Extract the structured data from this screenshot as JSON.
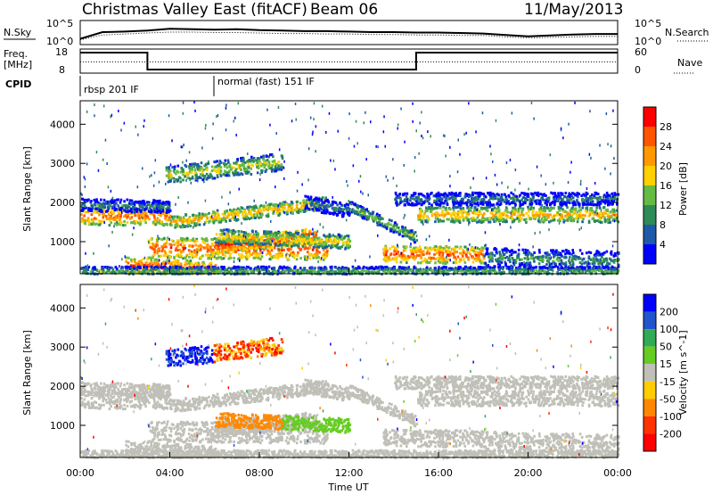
{
  "header": {
    "station": "Christmas Valley East (fitACF)",
    "beam": "Beam 06",
    "date": "11/May/2013"
  },
  "panel_labels": {
    "nsky": "N.Sky",
    "nsearch": "N.Search",
    "freq_line1": "Freq.",
    "freq_line2": "[MHz]",
    "nave": "Nave",
    "cpid": "CPID",
    "cpid_mode1": "rbsp 201 IF",
    "cpid_mode2": "normal (fast) 151 IF"
  },
  "colors": {
    "power_scale": [
      "#0000ff",
      "#1e5aa8",
      "#2e8b57",
      "#66bb44",
      "#ffd000",
      "#ff9900",
      "#ff5500",
      "#ff0000"
    ],
    "velocity_scale": [
      "#0000ff",
      "#2255cc",
      "#33aa55",
      "#66cc22",
      "#c0c0b8",
      "#ffcc00",
      "#ff8800",
      "#ff3300",
      "#ff0000"
    ],
    "ground_scatter": "#c0c0b8"
  },
  "chart_data": [
    {
      "type": "line",
      "name": "noise-panel",
      "ylabel_left": "N.Sky",
      "ylabel_right": "N.Search",
      "yticks_left": [
        "10^5",
        "10^0"
      ],
      "yticks_right": [
        "10^5",
        "10^0"
      ],
      "x": [
        0,
        1,
        2,
        3,
        4,
        5,
        6,
        7,
        8,
        9,
        10,
        11,
        12,
        13,
        14,
        15,
        16,
        17,
        18,
        19,
        20,
        21,
        22,
        23,
        24
      ],
      "series": [
        {
          "values": [
            1.2,
            2.6,
            2.7,
            2.9,
            3.3,
            3.2,
            3.1,
            3.2,
            3.0,
            2.9,
            2.8,
            2.8,
            2.7,
            2.6,
            2.6,
            2.5,
            2.5,
            2.4,
            2.3,
            2.0,
            1.7,
            1.9,
            2.1,
            2.2,
            2.2
          ]
        },
        {
          "values": [
            1.0,
            2.0,
            2.2,
            2.4,
            2.6,
            2.6,
            2.5,
            2.5,
            2.4,
            2.3,
            2.3,
            2.2,
            2.2,
            2.1,
            2.1,
            2.0,
            2.0,
            1.9,
            1.9,
            1.6,
            1.4,
            1.5,
            1.6,
            1.7,
            1.7
          ]
        }
      ],
      "ylim": [
        0,
        5
      ]
    },
    {
      "type": "line",
      "name": "frequency-panel",
      "ylabel_left": "Freq. [MHz]",
      "ylabel_right": "Nave",
      "yticks_left": [
        "18",
        "8"
      ],
      "yticks_right": [
        "60",
        "0"
      ],
      "series": [
        {
          "name": "Freq.",
          "steps": [
            [
              0,
              16.5
            ],
            [
              3.0,
              16.5
            ],
            [
              3.0,
              9.5
            ],
            [
              15.0,
              9.5
            ],
            [
              15.0,
              16.5
            ],
            [
              24,
              16.5
            ]
          ]
        },
        {
          "name": "Nave",
          "steps": [
            [
              0,
              28
            ],
            [
              24,
              28
            ]
          ]
        }
      ],
      "ylim": [
        8,
        18
      ]
    },
    {
      "type": "heatmap",
      "name": "power-panel",
      "ylabel": "Slant Range [km]",
      "yticks": [
        1000,
        2000,
        3000,
        4000
      ],
      "ylim": [
        180,
        4600
      ],
      "xlim": [
        0,
        24
      ],
      "colorbar_label": "Power [dB]",
      "colorbar_ticks": [
        4,
        8,
        12,
        16,
        20,
        24,
        28
      ],
      "colorbar_range": [
        0,
        32
      ]
    },
    {
      "type": "heatmap",
      "name": "velocity-panel",
      "ylabel": "Slant Range [km]",
      "yticks": [
        1000,
        2000,
        3000,
        4000
      ],
      "ylim": [
        180,
        4600
      ],
      "xlim": [
        0,
        24
      ],
      "xlabel": "Time UT",
      "xticks": [
        "00:00",
        "04:00",
        "08:00",
        "12:00",
        "16:00",
        "20:00",
        "00:00"
      ],
      "colorbar_label": "Velocity [m s^-1]",
      "colorbar_ticks": [
        200,
        100,
        50,
        15,
        -15,
        -50,
        -100,
        -200
      ]
    }
  ]
}
